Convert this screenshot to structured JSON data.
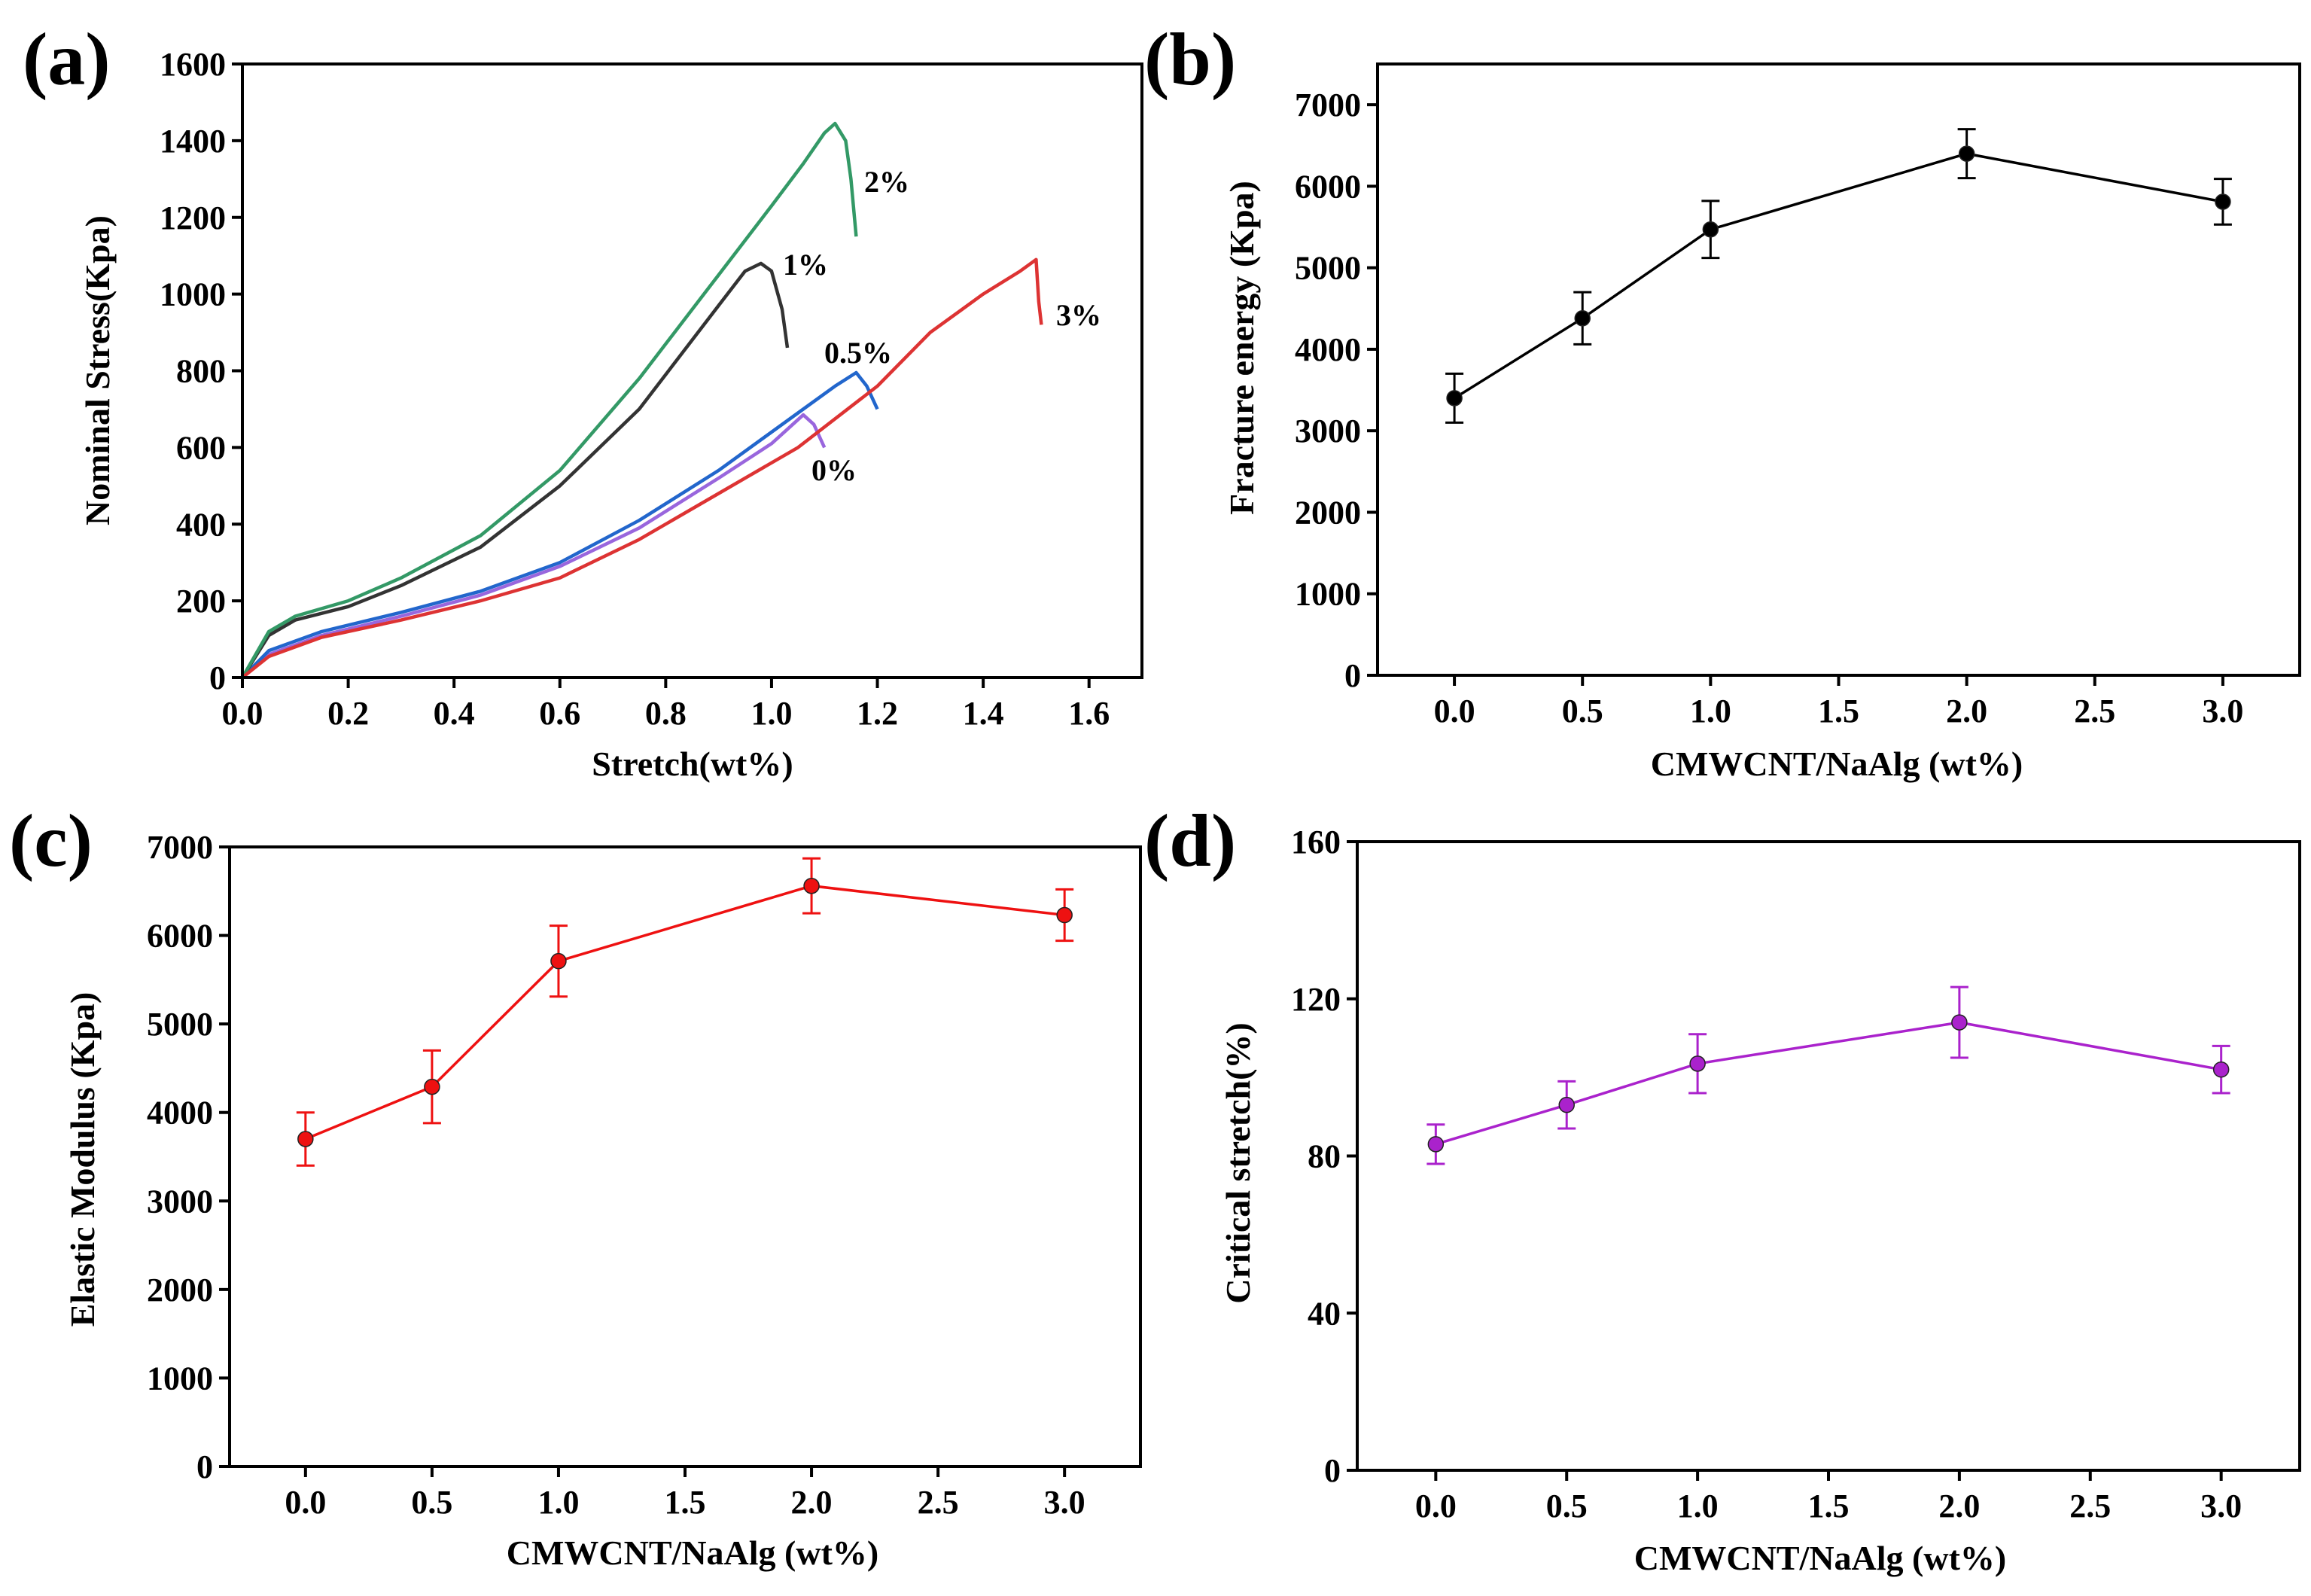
{
  "chart_data": [
    {
      "panel": "(a)",
      "type": "line",
      "xlabel": "Stretch(wt%)",
      "ylabel": "Nominal Stress(Kpa)",
      "xlim": [
        0,
        1.7
      ],
      "ylim": [
        0,
        1600
      ],
      "xticks": [
        "0.0",
        "0.2",
        "0.4",
        "0.6",
        "0.8",
        "1.0",
        "1.2",
        "1.4",
        "1.6"
      ],
      "yticks": [
        "0",
        "200",
        "400",
        "600",
        "800",
        "1000",
        "1200",
        "1400",
        "1600"
      ],
      "series": [
        {
          "name": "0%",
          "color": "#9966dd",
          "points": [
            [
              0,
              0
            ],
            [
              0.05,
              60
            ],
            [
              0.15,
              110
            ],
            [
              0.3,
              160
            ],
            [
              0.45,
              215
            ],
            [
              0.6,
              290
            ],
            [
              0.75,
              390
            ],
            [
              0.9,
              520
            ],
            [
              1.0,
              610
            ],
            [
              1.06,
              685
            ],
            [
              1.08,
              660
            ],
            [
              1.1,
              600
            ]
          ]
        },
        {
          "name": "0.5%",
          "color": "#2266cc",
          "points": [
            [
              0,
              0
            ],
            [
              0.05,
              70
            ],
            [
              0.15,
              120
            ],
            [
              0.3,
              170
            ],
            [
              0.45,
              225
            ],
            [
              0.6,
              300
            ],
            [
              0.75,
              410
            ],
            [
              0.9,
              540
            ],
            [
              1.05,
              690
            ],
            [
              1.12,
              760
            ],
            [
              1.16,
              795
            ],
            [
              1.18,
              760
            ],
            [
              1.2,
              700
            ]
          ]
        },
        {
          "name": "1%",
          "color": "#333333",
          "points": [
            [
              0,
              0
            ],
            [
              0.05,
              110
            ],
            [
              0.1,
              150
            ],
            [
              0.2,
              185
            ],
            [
              0.3,
              240
            ],
            [
              0.45,
              340
            ],
            [
              0.6,
              500
            ],
            [
              0.75,
              700
            ],
            [
              0.9,
              970
            ],
            [
              0.95,
              1060
            ],
            [
              0.98,
              1080
            ],
            [
              1.0,
              1060
            ],
            [
              1.02,
              960
            ],
            [
              1.03,
              860
            ]
          ]
        },
        {
          "name": "2%",
          "color": "#339966",
          "points": [
            [
              0,
              0
            ],
            [
              0.05,
              120
            ],
            [
              0.1,
              160
            ],
            [
              0.2,
              200
            ],
            [
              0.3,
              260
            ],
            [
              0.45,
              370
            ],
            [
              0.6,
              540
            ],
            [
              0.75,
              780
            ],
            [
              0.9,
              1050
            ],
            [
              1.0,
              1230
            ],
            [
              1.06,
              1340
            ],
            [
              1.1,
              1420
            ],
            [
              1.12,
              1445
            ],
            [
              1.14,
              1400
            ],
            [
              1.15,
              1300
            ],
            [
              1.16,
              1150
            ]
          ]
        },
        {
          "name": "3%",
          "color": "#dd3333",
          "points": [
            [
              0,
              0
            ],
            [
              0.05,
              55
            ],
            [
              0.15,
              105
            ],
            [
              0.3,
              150
            ],
            [
              0.45,
              200
            ],
            [
              0.6,
              260
            ],
            [
              0.75,
              360
            ],
            [
              0.9,
              480
            ],
            [
              1.05,
              600
            ],
            [
              1.2,
              760
            ],
            [
              1.3,
              900
            ],
            [
              1.4,
              1000
            ],
            [
              1.47,
              1060
            ],
            [
              1.5,
              1090
            ],
            [
              1.505,
              980
            ],
            [
              1.51,
              920
            ]
          ]
        }
      ],
      "annotations": [
        "2%",
        "1%",
        "0.5%",
        "0%",
        "3%"
      ]
    },
    {
      "panel": "(b)",
      "type": "line",
      "xlabel": "CMWCNT/NaAlg (wt%)",
      "ylabel": "Fracture energy (Kpa)",
      "xlim": [
        -0.3,
        3.3
      ],
      "ylim": [
        0,
        7500
      ],
      "xticks": [
        "0.0",
        "0.5",
        "1.0",
        "1.5",
        "2.0",
        "2.5",
        "3.0"
      ],
      "yticks": [
        "0",
        "1000",
        "2000",
        "3000",
        "4000",
        "5000",
        "6000",
        "7000"
      ],
      "color": "#000000",
      "x": [
        0,
        0.5,
        1.0,
        2.0,
        3.0
      ],
      "y": [
        3400,
        4380,
        5470,
        6400,
        5810
      ],
      "err": [
        300,
        320,
        350,
        300,
        280
      ]
    },
    {
      "panel": "(c)",
      "type": "line",
      "xlabel": "CMWCNT/NaAlg (wt%)",
      "ylabel": "Elastic Modulus (Kpa)",
      "xlim": [
        -0.3,
        3.3
      ],
      "ylim": [
        0,
        7000
      ],
      "xticks": [
        "0.0",
        "0.5",
        "1.0",
        "1.5",
        "2.0",
        "2.5",
        "3.0"
      ],
      "yticks": [
        "0",
        "1000",
        "2000",
        "3000",
        "4000",
        "5000",
        "6000",
        "7000"
      ],
      "color": "#ee1111",
      "x": [
        0,
        0.5,
        1.0,
        2.0,
        3.0
      ],
      "y": [
        3700,
        4290,
        5710,
        6560,
        6230
      ],
      "err": [
        300,
        410,
        400,
        310,
        290
      ]
    },
    {
      "panel": "(d)",
      "type": "line",
      "xlabel": "CMWCNT/NaAlg (wt%)",
      "ylabel": "Critical stretch(%)",
      "xlim": [
        -0.3,
        3.3
      ],
      "ylim": [
        0,
        160
      ],
      "xticks": [
        "0.0",
        "0.5",
        "1.0",
        "1.5",
        "2.0",
        "2.5",
        "3.0"
      ],
      "yticks": [
        "0",
        "40",
        "80",
        "120",
        "160"
      ],
      "color": "#aa22cc",
      "x": [
        0,
        0.5,
        1.0,
        2.0,
        3.0
      ],
      "y": [
        83,
        93,
        103.5,
        114,
        102
      ],
      "err": [
        5,
        6,
        7.5,
        9,
        6
      ]
    }
  ]
}
